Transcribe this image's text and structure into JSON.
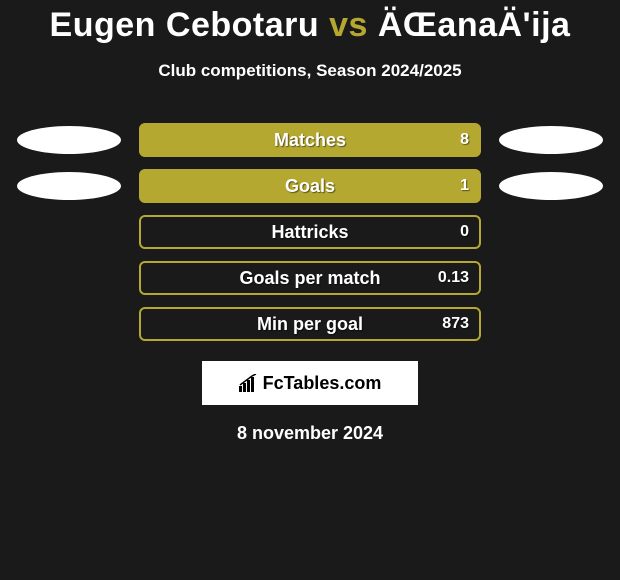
{
  "title": {
    "player1": "Eugen Cebotaru",
    "vs": "vs",
    "player2": "ÄŒanaÄ'ija"
  },
  "subtitle": "Club competitions, Season 2024/2025",
  "stats": [
    {
      "label": "Matches",
      "value": "8",
      "filled": true,
      "leftEllipse": true,
      "rightEllipse": true
    },
    {
      "label": "Goals",
      "value": "1",
      "filled": true,
      "leftEllipse": true,
      "rightEllipse": true
    },
    {
      "label": "Hattricks",
      "value": "0",
      "filled": false,
      "leftEllipse": false,
      "rightEllipse": false
    },
    {
      "label": "Goals per match",
      "value": "0.13",
      "filled": false,
      "leftEllipse": false,
      "rightEllipse": false
    },
    {
      "label": "Min per goal",
      "value": "873",
      "filled": false,
      "leftEllipse": false,
      "rightEllipse": false
    }
  ],
  "brand": "FcTables.com",
  "date": "8 november 2024",
  "colors": {
    "background": "#1a1a1a",
    "accent": "#b5a830",
    "text": "#ffffff",
    "brandBg": "#ffffff",
    "brandText": "#000000"
  }
}
